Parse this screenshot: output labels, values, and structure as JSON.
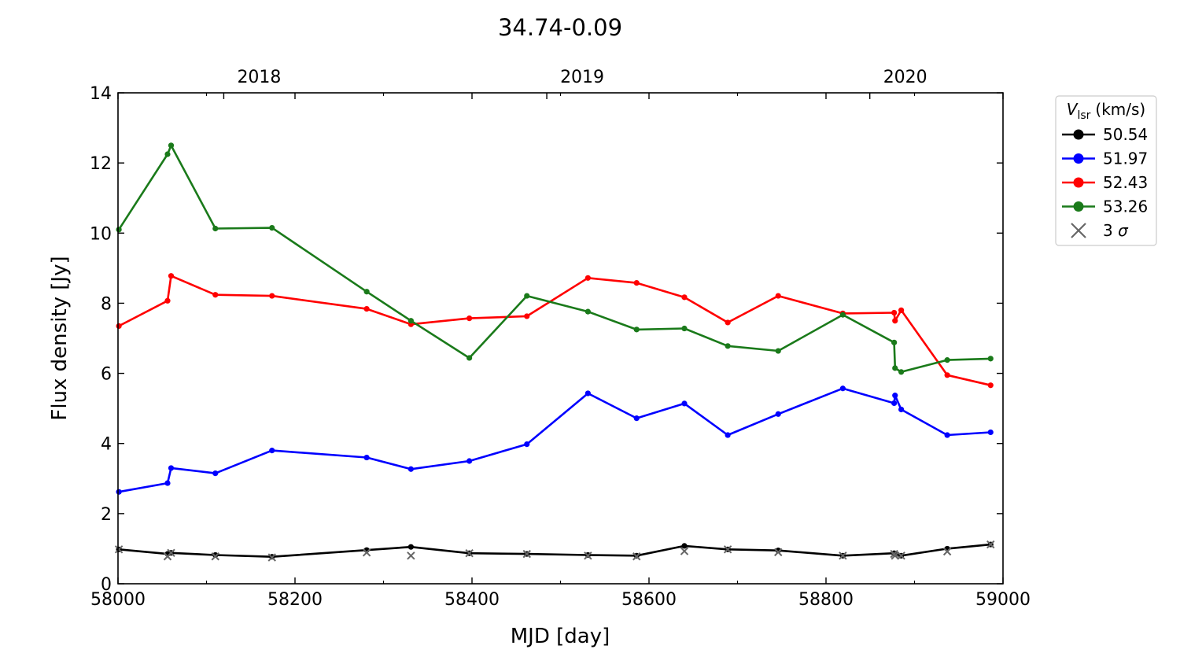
{
  "chart_data": {
    "type": "line",
    "title": "34.74-0.09",
    "xlabel": "MJD [day]",
    "ylabel": "Flux density [Jy]",
    "xlim": [
      58000,
      59000
    ],
    "ylim": [
      0,
      14
    ],
    "xticks": [
      58000,
      58200,
      58400,
      58600,
      58800,
      59000
    ],
    "yticks": [
      0,
      2,
      4,
      6,
      8,
      10,
      12,
      14
    ],
    "top_axis": {
      "labels": [
        "2018",
        "2019",
        "2020"
      ],
      "tick_mjd": [
        58119.5,
        58484.5,
        58849.5
      ]
    },
    "grid": false,
    "legend": {
      "position": "outside-right-top",
      "title_main": "V",
      "title_sub": "lsr",
      "title_unit": "(km/s)",
      "sigma_label": "3 σ"
    },
    "x": [
      58001,
      58056,
      58060,
      58110,
      58174,
      58281,
      58331,
      58397,
      58462,
      58531,
      58586,
      58640,
      58689,
      58746,
      58819,
      58877,
      58878,
      58885,
      58937,
      58986
    ],
    "series": [
      {
        "name": "50.54",
        "color": "#000000",
        "values": [
          0.98,
          0.85,
          0.88,
          0.82,
          0.77,
          0.96,
          1.05,
          0.87,
          0.85,
          0.82,
          0.8,
          1.08,
          0.98,
          0.95,
          0.8,
          0.87,
          0.85,
          0.8,
          1.0,
          1.12
        ]
      },
      {
        "name": "51.97",
        "color": "#0000ff",
        "values": [
          2.62,
          2.87,
          3.3,
          3.15,
          3.8,
          3.6,
          3.27,
          3.5,
          3.98,
          5.43,
          4.72,
          5.14,
          4.24,
          4.84,
          5.57,
          5.15,
          5.37,
          4.97,
          4.24,
          4.32
        ]
      },
      {
        "name": "52.43",
        "color": "#ff0000",
        "values": [
          7.35,
          8.07,
          8.78,
          8.24,
          8.21,
          7.84,
          7.4,
          7.57,
          7.63,
          8.72,
          8.58,
          8.17,
          7.45,
          8.21,
          7.71,
          7.73,
          7.5,
          7.8,
          5.95,
          5.66
        ]
      },
      {
        "name": "53.26",
        "color": "#1a7a1a",
        "values": [
          10.1,
          12.25,
          12.5,
          10.13,
          10.15,
          8.33,
          7.5,
          6.44,
          8.21,
          7.76,
          7.25,
          7.28,
          6.78,
          6.64,
          7.67,
          6.88,
          6.15,
          6.04,
          6.38,
          6.42
        ]
      }
    ],
    "sigma3": {
      "name": "3 σ",
      "color": "#666666",
      "x": [
        58001,
        58056,
        58060,
        58110,
        58174,
        58281,
        58331,
        58397,
        58462,
        58531,
        58586,
        58640,
        58689,
        58746,
        58819,
        58877,
        58878,
        58885,
        58937,
        58986
      ],
      "values": [
        0.98,
        0.78,
        0.88,
        0.78,
        0.75,
        0.89,
        0.8,
        0.87,
        0.85,
        0.8,
        0.78,
        0.93,
        0.98,
        0.9,
        0.8,
        0.85,
        0.8,
        0.8,
        0.92,
        1.12
      ]
    }
  }
}
